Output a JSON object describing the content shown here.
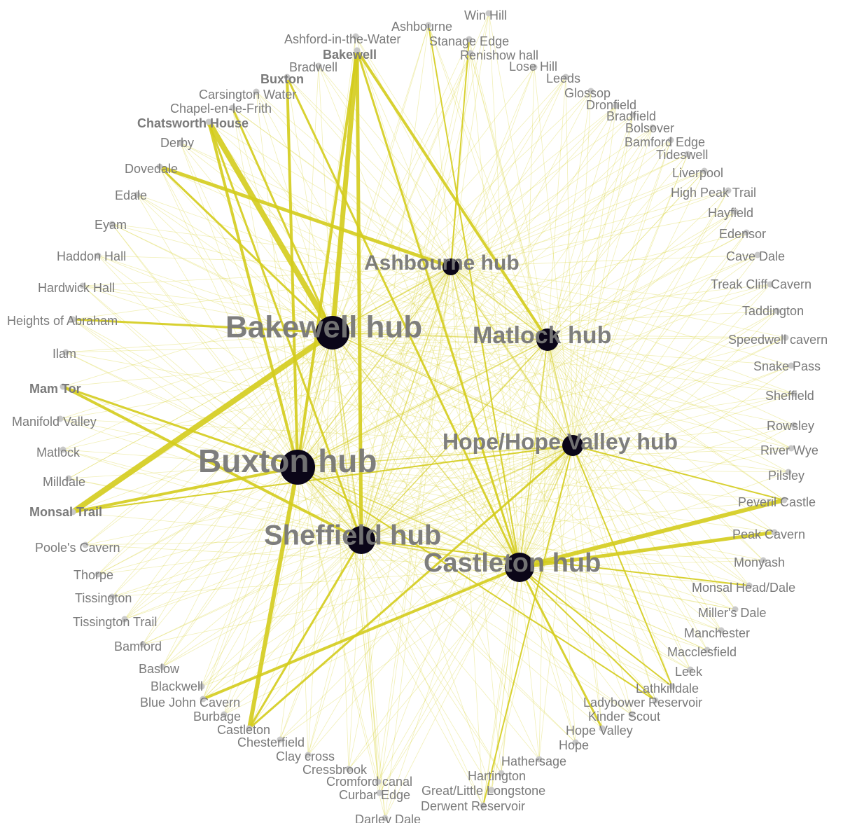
{
  "colors": {
    "edge": "#d4cc1c",
    "hub": "#0b0618",
    "site_node": "#c8c8c8",
    "label": "#7a7a7a"
  },
  "hubs": [
    {
      "id": "bakewell",
      "label": "Bakewell hub"
    },
    {
      "id": "buxton",
      "label": "Buxton hub"
    },
    {
      "id": "sheffield",
      "label": "Sheffield hub"
    },
    {
      "id": "castleton",
      "label": "Castleton hub"
    },
    {
      "id": "hope",
      "label": "Hope/Hope Valley hub"
    },
    {
      "id": "matlock",
      "label": "Matlock hub"
    },
    {
      "id": "ashbourne",
      "label": "Ashbourne hub"
    }
  ],
  "sites": [
    {
      "label": "Win Hill"
    },
    {
      "label": "Ashbourne"
    },
    {
      "label": "Ashford-in-the-Water"
    },
    {
      "label": "Stanage Edge"
    },
    {
      "label": "Bakewell"
    },
    {
      "label": "Renishow hall"
    },
    {
      "label": "Bradwell"
    },
    {
      "label": "Lose Hill"
    },
    {
      "label": "Buxton"
    },
    {
      "label": "Leeds"
    },
    {
      "label": "Carsington Water"
    },
    {
      "label": "Glossop"
    },
    {
      "label": "Chapel-en-le-Frith"
    },
    {
      "label": "Dronfield"
    },
    {
      "label": "Bradfield"
    },
    {
      "label": "Chatsworth House"
    },
    {
      "label": "Bolsover"
    },
    {
      "label": "Derby"
    },
    {
      "label": "Bamford Edge"
    },
    {
      "label": "Tideswell"
    },
    {
      "label": "Dovedale"
    },
    {
      "label": "Liverpool"
    },
    {
      "label": "Edale"
    },
    {
      "label": "High Peak Trail"
    },
    {
      "label": "Hayfield"
    },
    {
      "label": "Eyam"
    },
    {
      "label": "Edensor"
    },
    {
      "label": "Haddon Hall"
    },
    {
      "label": "Cave Dale"
    },
    {
      "label": "Hardwick Hall"
    },
    {
      "label": "Treak Cliff Cavern"
    },
    {
      "label": "Taddington"
    },
    {
      "label": "Heights of Abraham"
    },
    {
      "label": "Speedwell cavern"
    },
    {
      "label": "Ilam"
    },
    {
      "label": "Snake Pass"
    },
    {
      "label": "Mam Tor"
    },
    {
      "label": "Sheffield"
    },
    {
      "label": "Manifold Valley"
    },
    {
      "label": "Rowsley"
    },
    {
      "label": "Matlock"
    },
    {
      "label": "River Wye"
    },
    {
      "label": "Pilsley"
    },
    {
      "label": "Milldale"
    },
    {
      "label": "Peveril Castle"
    },
    {
      "label": "Monsal Trail"
    },
    {
      "label": "Peak Cavern"
    },
    {
      "label": "Poole's Cavern"
    },
    {
      "label": "Monyash"
    },
    {
      "label": "Thorpe"
    },
    {
      "label": "Monsal Head/Dale"
    },
    {
      "label": "Tissington"
    },
    {
      "label": "Miller's Dale"
    },
    {
      "label": "Tissington Trail"
    },
    {
      "label": "Manchester"
    },
    {
      "label": "Bamford"
    },
    {
      "label": "Macclesfield"
    },
    {
      "label": "Baslow"
    },
    {
      "label": "Leek"
    },
    {
      "label": "Blackwell"
    },
    {
      "label": "Lathkilldale"
    },
    {
      "label": "Blue John Cavern"
    },
    {
      "label": "Ladybower Reservoir"
    },
    {
      "label": "Burbage"
    },
    {
      "label": "Kinder Scout"
    },
    {
      "label": "Castleton"
    },
    {
      "label": "Hope Valley"
    },
    {
      "label": "Chesterfield"
    },
    {
      "label": "Hope"
    },
    {
      "label": "Clay cross"
    },
    {
      "label": "Hathersage"
    },
    {
      "label": "Cressbrook"
    },
    {
      "label": "Hartington"
    },
    {
      "label": "Cromford canal"
    },
    {
      "label": "Great/Little Longstone"
    },
    {
      "label": "Curbar Edge"
    },
    {
      "label": "Derwent Reservoir"
    },
    {
      "label": "Darley Dale"
    }
  ]
}
